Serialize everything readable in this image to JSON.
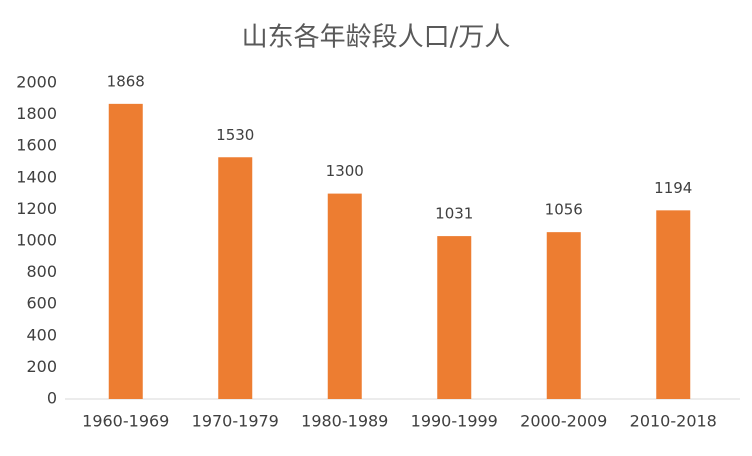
{
  "chart_data": {
    "type": "bar",
    "title": "山东各年龄段人口/万人",
    "categories": [
      "1960-1969",
      "1970-1979",
      "1980-1989",
      "1990-1999",
      "2000-2009",
      "2010-2018"
    ],
    "values": [
      1868,
      1530,
      1300,
      1031,
      1056,
      1194
    ],
    "color": "#ed7d31",
    "ylim": [
      0,
      2000
    ],
    "yticks": [
      0,
      200,
      400,
      600,
      800,
      1000,
      1200,
      1400,
      1600,
      1800,
      2000
    ],
    "grid": false
  }
}
